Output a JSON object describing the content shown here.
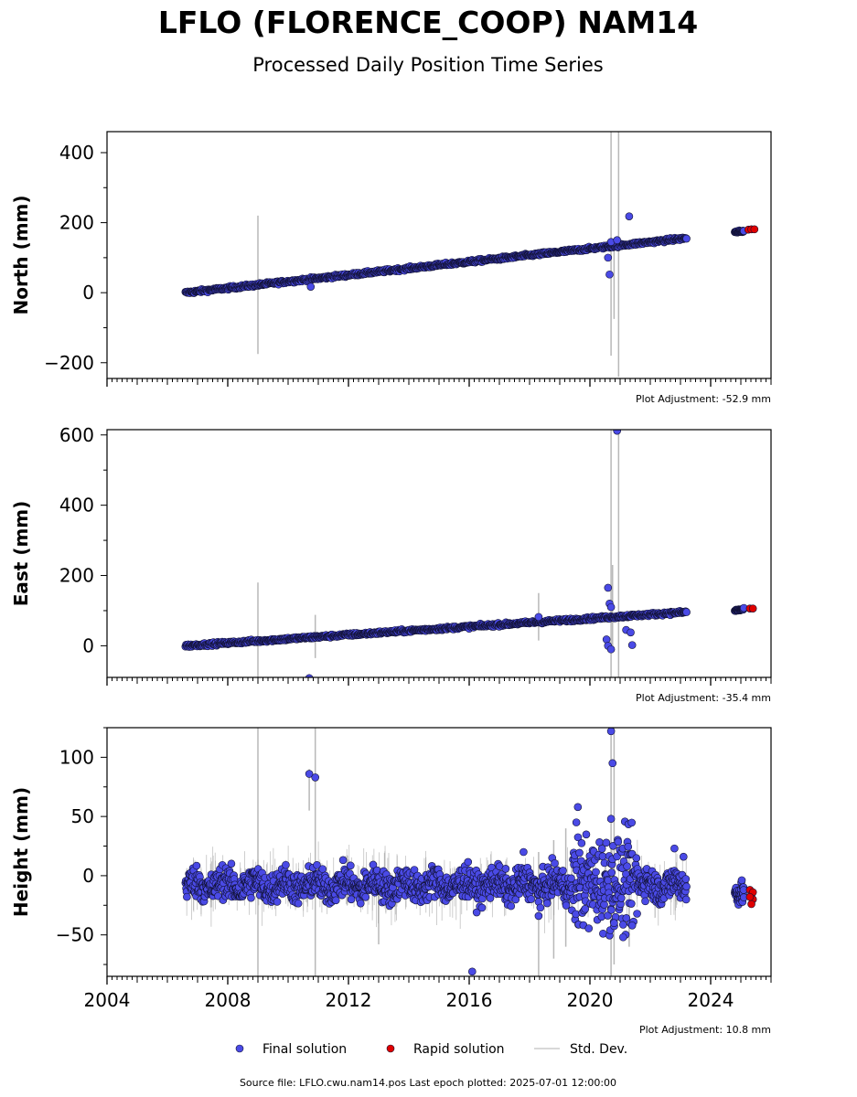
{
  "header": {
    "title": "LFLO (FLORENCE_COOP) NAM14",
    "subtitle": "Processed Daily Position Time Series"
  },
  "footer": {
    "source": "Source file: LFLO.cwu.nam14.pos  Last epoch plotted: 2025-07-01 12:00:00"
  },
  "legend": {
    "placement": "bottom-center",
    "items": [
      {
        "label": "Final solution",
        "color": "#4a4ae6",
        "kind": "marker"
      },
      {
        "label": "Rapid solution",
        "color": "#e00000",
        "kind": "marker"
      },
      {
        "label": "Std. Dev.",
        "color": "#cccccc",
        "kind": "line"
      }
    ]
  },
  "colors": {
    "final": "#4a4ae6",
    "rapid": "#e00000",
    "stddev": "#b8b8b8",
    "edge": "#111133"
  },
  "chart_data": [
    {
      "type": "scatter",
      "ylabel": "North (mm)",
      "xlim": [
        2004,
        2026
      ],
      "ylim": [
        -245,
        460
      ],
      "yticks": [
        -200,
        0,
        200,
        400
      ],
      "xticks": [
        2004,
        2008,
        2012,
        2016,
        2020,
        2024
      ],
      "show_xticklabels": false,
      "adjustment": "Plot Adjustment: -52.9 mm",
      "series": [
        {
          "name": "Final solution",
          "color": "#4a4ae6",
          "trend": {
            "start": [
              2006.6,
              0
            ],
            "end": [
              2023.2,
              156
            ]
          },
          "segment2": {
            "start": [
              2024.8,
              173
            ],
            "end": [
              2025.1,
              176
            ]
          },
          "outliers": [
            [
              2010.75,
              17
            ],
            [
              2020.6,
              100
            ],
            [
              2020.65,
              52
            ],
            [
              2020.7,
              145
            ],
            [
              2021.3,
              218
            ],
            [
              2020.9,
              150
            ]
          ]
        },
        {
          "name": "Rapid solution",
          "color": "#e00000",
          "points": [
            [
              2025.25,
              180
            ],
            [
              2025.35,
              181
            ],
            [
              2025.45,
              181
            ]
          ]
        }
      ],
      "stddev_bars": [
        [
          2009.0,
          -175,
          220
        ],
        [
          2020.7,
          -180,
          460
        ],
        [
          2020.95,
          -240,
          460
        ],
        [
          2020.8,
          -75,
          155
        ]
      ]
    },
    {
      "type": "scatter",
      "ylabel": "East (mm)",
      "xlim": [
        2004,
        2026
      ],
      "ylim": [
        -90,
        615
      ],
      "yticks": [
        0,
        200,
        400,
        600
      ],
      "xticks": [
        2004,
        2008,
        2012,
        2016,
        2020,
        2024
      ],
      "show_xticklabels": false,
      "adjustment": "Plot Adjustment: -35.4 mm",
      "series": [
        {
          "name": "Final solution",
          "color": "#4a4ae6",
          "trend": {
            "start": [
              2006.6,
              0
            ],
            "end": [
              2023.2,
              96
            ]
          },
          "segment2": {
            "start": [
              2024.8,
              100
            ],
            "end": [
              2025.1,
              104
            ]
          },
          "outliers": [
            [
              2010.7,
              -92
            ],
            [
              2018.3,
              82
            ],
            [
              2020.6,
              165
            ],
            [
              2020.65,
              120
            ],
            [
              2020.55,
              18
            ],
            [
              2020.6,
              0
            ],
            [
              2020.7,
              -10
            ],
            [
              2020.9,
              612
            ],
            [
              2021.2,
              45
            ],
            [
              2021.4,
              2
            ],
            [
              2021.35,
              38
            ],
            [
              2020.7,
              110
            ]
          ]
        },
        {
          "name": "Rapid solution",
          "color": "#e00000",
          "points": [
            [
              2025.3,
              106
            ],
            [
              2025.4,
              106
            ]
          ]
        }
      ],
      "stddev_bars": [
        [
          2009.0,
          -90,
          180
        ],
        [
          2010.9,
          -35,
          88
        ],
        [
          2018.3,
          15,
          150
        ],
        [
          2020.7,
          -90,
          615
        ],
        [
          2020.95,
          -90,
          615
        ],
        [
          2020.75,
          -10,
          230
        ]
      ]
    },
    {
      "type": "scatter",
      "ylabel": "Height (mm)",
      "xlim": [
        2004,
        2026
      ],
      "ylim": [
        -85,
        125
      ],
      "yticks": [
        -50,
        0,
        50,
        100
      ],
      "xticks": [
        2004,
        2008,
        2012,
        2016,
        2020,
        2024
      ],
      "xticklabels": [
        "2004",
        "2008",
        "2012",
        "2016",
        "2020",
        "2024"
      ],
      "show_xticklabels": true,
      "adjustment": "Plot Adjustment: 10.8 mm",
      "series": [
        {
          "name": "Final solution",
          "color": "#4a4ae6",
          "band": {
            "start": 2006.6,
            "end": 2023.2,
            "center": -8,
            "spread": 12
          },
          "segment2": {
            "start": 2024.8,
            "end": 2025.1,
            "center": -15,
            "spread": 8
          },
          "outliers": [
            [
              2010.7,
              86
            ],
            [
              2010.9,
              83
            ],
            [
              2016.1,
              -81
            ],
            [
              2018.3,
              -34
            ],
            [
              2017.8,
              20
            ],
            [
              2019.6,
              58
            ],
            [
              2019.55,
              45
            ],
            [
              2020.7,
              122
            ],
            [
              2020.75,
              95
            ],
            [
              2020.7,
              48
            ],
            [
              2021.1,
              -52
            ],
            [
              2021.4,
              -42
            ],
            [
              2022.8,
              23
            ],
            [
              2023.1,
              16
            ],
            [
              2020.8,
              -40
            ]
          ]
        },
        {
          "name": "Rapid solution",
          "color": "#e00000",
          "points": [
            [
              2025.3,
              -12
            ],
            [
              2025.35,
              -16
            ],
            [
              2025.4,
              -20
            ],
            [
              2025.35,
              -24
            ],
            [
              2025.4,
              -14
            ],
            [
              2025.3,
              -18
            ]
          ]
        }
      ],
      "stddev_bars": [
        [
          2009.0,
          -85,
          125
        ],
        [
          2010.9,
          -85,
          125
        ],
        [
          2010.7,
          55,
          90
        ],
        [
          2013.0,
          -58,
          5
        ],
        [
          2018.3,
          -85,
          20
        ],
        [
          2018.8,
          -70,
          30
        ],
        [
          2019.2,
          -60,
          40
        ],
        [
          2020.7,
          -85,
          125
        ],
        [
          2020.8,
          -75,
          125
        ],
        [
          2021.3,
          -60,
          20
        ]
      ]
    }
  ]
}
